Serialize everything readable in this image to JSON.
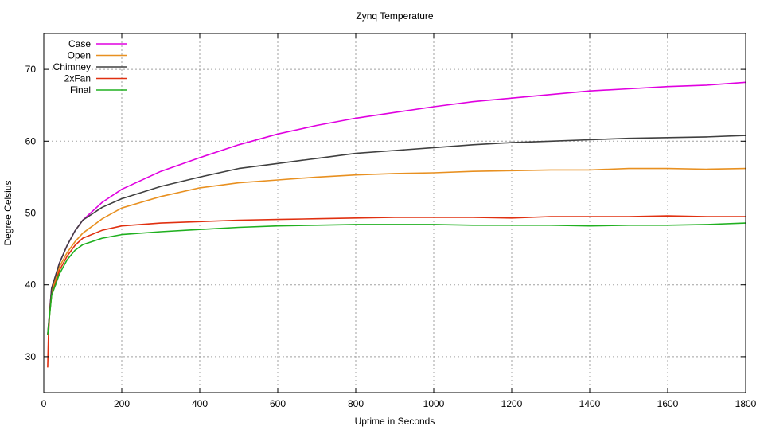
{
  "chart_data": {
    "type": "line",
    "title": "Zynq Temperature",
    "xlabel": "Uptime in Seconds",
    "ylabel": "Degree Celsius",
    "xlim": [
      0,
      1800
    ],
    "ylim": [
      25,
      75
    ],
    "xticks": [
      0,
      200,
      400,
      600,
      800,
      1000,
      1200,
      1400,
      1600,
      1800
    ],
    "yticks": [
      30,
      40,
      50,
      60,
      70
    ],
    "grid": true,
    "legend_position": "top-left",
    "series": [
      {
        "name": "Case",
        "color": "#e000e0",
        "x": [
          10,
          20,
          40,
          60,
          80,
          100,
          150,
          200,
          300,
          400,
          500,
          600,
          700,
          800,
          900,
          1000,
          1100,
          1200,
          1300,
          1400,
          1500,
          1600,
          1700,
          1800
        ],
        "y": [
          33,
          39.5,
          43,
          45.5,
          47.5,
          49,
          51.5,
          53.3,
          55.8,
          57.7,
          59.5,
          61,
          62.2,
          63.2,
          64,
          64.8,
          65.5,
          66,
          66.5,
          67,
          67.3,
          67.6,
          67.8,
          68.2
        ]
      },
      {
        "name": "Open",
        "color": "#e89020",
        "x": [
          10,
          20,
          40,
          60,
          80,
          100,
          150,
          200,
          300,
          400,
          500,
          600,
          700,
          800,
          900,
          1000,
          1100,
          1200,
          1300,
          1400,
          1500,
          1600,
          1700,
          1800
        ],
        "y": [
          33,
          39,
          42.5,
          44.5,
          46,
          47.2,
          49.2,
          50.7,
          52.3,
          53.5,
          54.2,
          54.6,
          55,
          55.3,
          55.5,
          55.6,
          55.8,
          55.9,
          56,
          56,
          56.2,
          56.2,
          56.1,
          56.2
        ]
      },
      {
        "name": "Chimney",
        "color": "#404040",
        "x": [
          10,
          20,
          40,
          60,
          80,
          100,
          150,
          200,
          300,
          400,
          500,
          600,
          700,
          800,
          900,
          1000,
          1100,
          1200,
          1300,
          1400,
          1500,
          1600,
          1700,
          1800
        ],
        "y": [
          33,
          39.5,
          43,
          45.5,
          47.5,
          49,
          50.8,
          52,
          53.7,
          55,
          56.2,
          56.9,
          57.6,
          58.3,
          58.7,
          59.1,
          59.5,
          59.8,
          60,
          60.2,
          60.4,
          60.5,
          60.6,
          60.8
        ]
      },
      {
        "name": "2xFan",
        "color": "#e03010",
        "x": [
          10,
          12,
          15,
          20,
          40,
          60,
          80,
          100,
          150,
          200,
          300,
          400,
          500,
          600,
          700,
          800,
          900,
          1000,
          1100,
          1200,
          1300,
          1400,
          1500,
          1600,
          1700,
          1800
        ],
        "y": [
          28.5,
          33,
          36,
          38.5,
          42,
          44,
          45.5,
          46.5,
          47.6,
          48.2,
          48.6,
          48.8,
          49,
          49.1,
          49.2,
          49.3,
          49.4,
          49.4,
          49.4,
          49.3,
          49.5,
          49.5,
          49.5,
          49.6,
          49.5,
          49.5
        ]
      },
      {
        "name": "Final",
        "color": "#20b020",
        "x": [
          10,
          20,
          40,
          60,
          80,
          100,
          150,
          200,
          300,
          400,
          500,
          600,
          700,
          800,
          900,
          1000,
          1100,
          1200,
          1300,
          1400,
          1500,
          1600,
          1700,
          1800
        ],
        "y": [
          33,
          38.5,
          41.5,
          43.5,
          44.8,
          45.6,
          46.5,
          47,
          47.4,
          47.7,
          48,
          48.2,
          48.3,
          48.4,
          48.4,
          48.4,
          48.3,
          48.3,
          48.3,
          48.2,
          48.3,
          48.3,
          48.4,
          48.6
        ]
      }
    ]
  }
}
